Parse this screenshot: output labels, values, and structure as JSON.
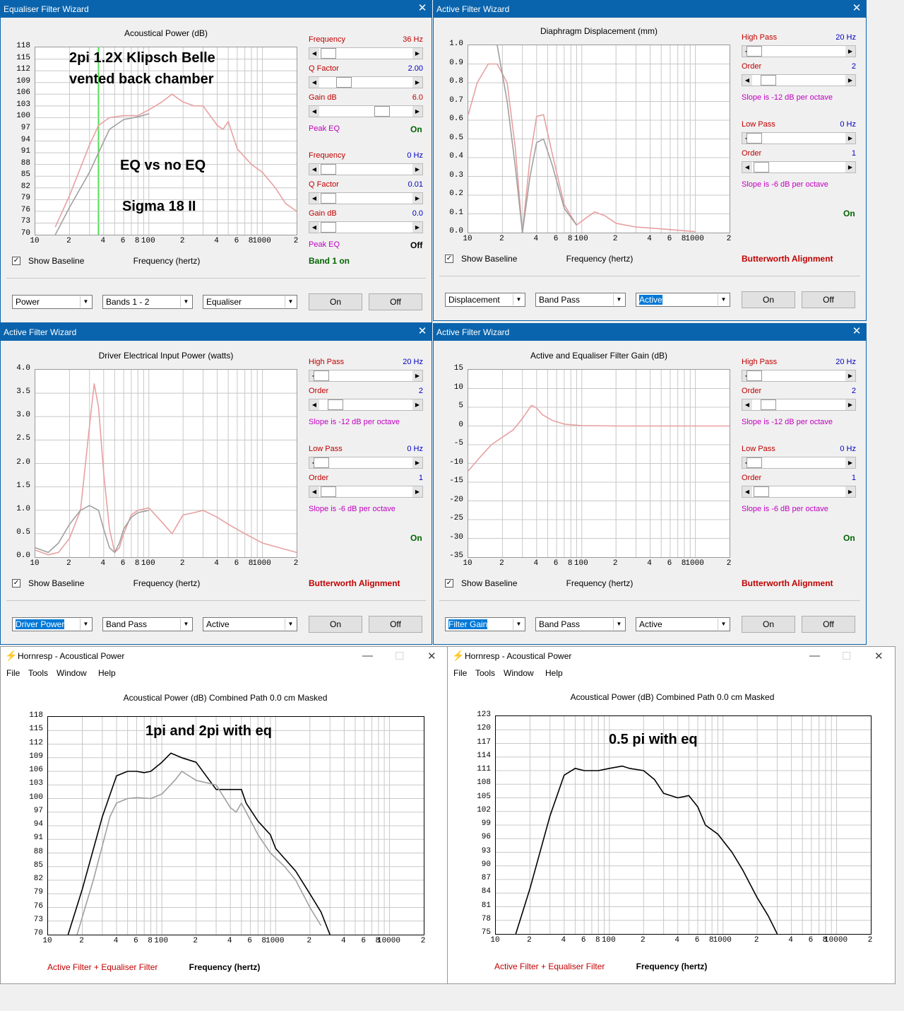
{
  "w1": {
    "title": "Equaliser Filter Wizard",
    "chart_title": "Acoustical Power (dB)",
    "yticks": [
      "118",
      "115",
      "112",
      "109",
      "106",
      "103",
      "100",
      "97",
      "94",
      "91",
      "88",
      "85",
      "82",
      "79",
      "76",
      "73",
      "70"
    ],
    "xticks": [
      "10",
      "2",
      "4",
      "6",
      "8",
      "100",
      "2",
      "4",
      "6",
      "8",
      "1000",
      "2"
    ],
    "ann1": "2pi 1.2X Klipsch Belle",
    "ann2": "vented back chamber",
    "ann3": "EQ vs no EQ",
    "ann4": "Sigma 18 II",
    "controls": [
      {
        "label": "Frequency",
        "value": "36 Hz",
        "color": "#c00000"
      },
      {
        "label": "Q Factor",
        "value": "2.00",
        "color": "#0000c0"
      },
      {
        "label": "Gain  dB",
        "value": "6.0",
        "color": "#c00000"
      },
      {
        "label": "Frequency",
        "value": "0 Hz",
        "color": "#0000c0"
      },
      {
        "label": "Q Factor",
        "value": "0.01",
        "color": "#0000c0"
      },
      {
        "label": "Gain  dB",
        "value": "0.0",
        "color": "#0000c0"
      }
    ],
    "peak1": "Peak EQ",
    "peak1v": "On",
    "peak2": "Peak EQ",
    "peak2v": "Off",
    "band": "Band 1 on",
    "baseline": "Show Baseline",
    "xtitle": "Frequency (hertz)",
    "dd1": "Power",
    "dd2": "Bands 1 - 2",
    "dd3": "Equaliser",
    "on": "On",
    "off": "Off"
  },
  "w2": {
    "title": "Active Filter Wizard",
    "chart_title": "Diaphragm Displacement (mm)",
    "yticks": [
      "1.0",
      "0.9",
      "0.8",
      "0.7",
      "0.6",
      "0.5",
      "0.4",
      "0.3",
      "0.2",
      "0.1",
      "0.0"
    ],
    "xticks": [
      "10",
      "2",
      "4",
      "6",
      "8",
      "100",
      "2",
      "4",
      "6",
      "8",
      "1000",
      "2"
    ],
    "hp": "High Pass",
    "hpv": "20 Hz",
    "ord": "Order",
    "ordv": "2",
    "slope1": "Slope is -12 dB per octave",
    "lp": "Low Pass",
    "lpv": "0 Hz",
    "ord2": "Order",
    "ord2v": "1",
    "slope2": "Slope is -6 dB per octave",
    "status": "On",
    "align": "Butterworth Alignment",
    "baseline": "Show Baseline",
    "xtitle": "Frequency (hertz)",
    "dd1": "Displacement",
    "dd2": "Band Pass",
    "dd3": "Active",
    "on": "On",
    "off": "Off"
  },
  "w3": {
    "title": "Active Filter Wizard",
    "chart_title": "Driver Electrical Input Power (watts)",
    "yticks": [
      "4.0",
      "3.5",
      "3.0",
      "2.5",
      "2.0",
      "1.5",
      "1.0",
      "0.5",
      "0.0"
    ],
    "xticks": [
      "10",
      "2",
      "4",
      "6",
      "8",
      "100",
      "2",
      "4",
      "6",
      "8",
      "1000",
      "2"
    ],
    "hp": "High Pass",
    "hpv": "20 Hz",
    "ord": "Order",
    "ordv": "2",
    "slope1": "Slope is -12 dB per octave",
    "lp": "Low Pass",
    "lpv": "0 Hz",
    "ord2": "Order",
    "ord2v": "1",
    "slope2": "Slope is -6 dB per octave",
    "status": "On",
    "align": "Butterworth Alignment",
    "baseline": "Show Baseline",
    "xtitle": "Frequency (hertz)",
    "dd1": "Driver Power",
    "dd2": "Band Pass",
    "dd3": "Active",
    "on": "On",
    "off": "Off"
  },
  "w4": {
    "title": "Active Filter Wizard",
    "chart_title": "Active and Equaliser Filter Gain (dB)",
    "yticks": [
      "15",
      "10",
      "5",
      "0",
      "-5",
      "-10",
      "-15",
      "-20",
      "-25",
      "-30",
      "-35"
    ],
    "xticks": [
      "10",
      "2",
      "4",
      "6",
      "8",
      "100",
      "2",
      "4",
      "6",
      "8",
      "1000",
      "2"
    ],
    "hp": "High Pass",
    "hpv": "20 Hz",
    "ord": "Order",
    "ordv": "2",
    "slope1": "Slope is -12 dB per octave",
    "lp": "Low Pass",
    "lpv": "0 Hz",
    "ord2": "Order",
    "ord2v": "1",
    "slope2": "Slope is -6 dB per octave",
    "status": "On",
    "align": "Butterworth Alignment",
    "baseline": "Show Baseline",
    "xtitle": "Frequency (hertz)",
    "dd1": "Filter Gain",
    "dd2": "Band Pass",
    "dd3": "Active",
    "on": "On",
    "off": "Off"
  },
  "w5": {
    "title": "Hornresp - Acoustical Power",
    "menu": [
      "File",
      "Tools",
      "Window",
      "Help"
    ],
    "chart_title": "Acoustical Power (dB)   Combined   Path 0.0 cm   Masked",
    "yticks": [
      "118",
      "115",
      "112",
      "109",
      "106",
      "103",
      "100",
      "97",
      "94",
      "91",
      "88",
      "85",
      "82",
      "79",
      "76",
      "73",
      "70"
    ],
    "xticks": [
      "10",
      "2",
      "4",
      "6",
      "8",
      "100",
      "2",
      "4",
      "6",
      "8",
      "1000",
      "2",
      "4",
      "6",
      "8",
      "10000",
      "2"
    ],
    "ann": "1pi and 2pi with eq",
    "legend": "Active Filter + Equaliser Filter",
    "xtitle": "Frequency (hertz)"
  },
  "w6": {
    "title": "Hornresp - Acoustical Power",
    "menu": [
      "File",
      "Tools",
      "Window",
      "Help"
    ],
    "chart_title": "Acoustical Power (dB)   Combined   Path 0.0 cm   Masked",
    "yticks": [
      "123",
      "120",
      "117",
      "114",
      "111",
      "108",
      "105",
      "102",
      "99",
      "96",
      "93",
      "90",
      "87",
      "84",
      "81",
      "78",
      "75"
    ],
    "xticks": [
      "10",
      "2",
      "4",
      "6",
      "8",
      "100",
      "2",
      "4",
      "6",
      "8",
      "1000",
      "2",
      "4",
      "6",
      "8",
      "10000",
      "2"
    ],
    "ann": "0.5 pi with eq",
    "legend": "Active Filter + Equaliser Filter",
    "xtitle": "Frequency (hertz)"
  },
  "chart_data": [
    {
      "type": "line",
      "title": "Acoustical Power (dB)",
      "xlabel": "Frequency (hertz)",
      "xscale": "log",
      "xlim": [
        10,
        2000
      ],
      "ylim": [
        70,
        118
      ],
      "series": [
        {
          "name": "EQ",
          "color": "#e8a0a0",
          "x": [
            15,
            20,
            30,
            36,
            45,
            60,
            80,
            100,
            130,
            160,
            200,
            250,
            300,
            400,
            450,
            500,
            600,
            800,
            1000,
            1300,
            1600,
            2000
          ],
          "y": [
            72,
            80,
            93,
            98,
            100,
            100.5,
            100.5,
            102,
            104,
            106,
            104,
            103,
            103,
            98,
            97,
            99,
            92,
            88,
            86,
            82,
            78,
            76
          ]
        },
        {
          "name": "Baseline",
          "color": "#a0a0a0",
          "x": [
            15,
            20,
            30,
            36,
            45,
            60,
            80,
            100
          ],
          "y": [
            70,
            77,
            86,
            91,
            97,
            99.5,
            100.2,
            101
          ]
        }
      ]
    },
    {
      "type": "line",
      "title": "Diaphragm Displacement (mm)",
      "xlabel": "Frequency (hertz)",
      "xscale": "log",
      "xlim": [
        10,
        2000
      ],
      "ylim": [
        0,
        1
      ],
      "series": [
        {
          "name": "EQ",
          "color": "#e8a0a0",
          "x": [
            10,
            12,
            15,
            18,
            22,
            26,
            30,
            35,
            40,
            46,
            55,
            70,
            90,
            110,
            130,
            160,
            200,
            300,
            500,
            1000
          ],
          "y": [
            0.63,
            0.8,
            0.9,
            0.9,
            0.8,
            0.45,
            0.0,
            0.4,
            0.62,
            0.63,
            0.42,
            0.15,
            0.04,
            0.08,
            0.11,
            0.09,
            0.05,
            0.03,
            0.02,
            0.005
          ]
        },
        {
          "name": "Baseline",
          "color": "#a0a0a0",
          "x": [
            18,
            22,
            26,
            30,
            35,
            40,
            46,
            55,
            70,
            90
          ],
          "y": [
            1.0,
            0.7,
            0.35,
            0.0,
            0.3,
            0.48,
            0.5,
            0.36,
            0.13,
            0.04
          ]
        }
      ]
    },
    {
      "type": "line",
      "title": "Driver Electrical Input Power (watts)",
      "xlabel": "Frequency (hertz)",
      "xscale": "log",
      "xlim": [
        10,
        2000
      ],
      "ylim": [
        0,
        4
      ],
      "series": [
        {
          "name": "EQ",
          "color": "#e8a0a0",
          "x": [
            10,
            13,
            16,
            20,
            25,
            30,
            33,
            36,
            40,
            45,
            50,
            55,
            60,
            70,
            80,
            100,
            130,
            160,
            200,
            250,
            300,
            400,
            500,
            700,
            1000,
            2000
          ],
          "y": [
            0.15,
            0.05,
            0.1,
            0.4,
            1.0,
            2.8,
            3.7,
            3.2,
            1.8,
            0.6,
            0.1,
            0.2,
            0.5,
            0.9,
            1.0,
            1.05,
            0.75,
            0.5,
            0.9,
            0.95,
            1.0,
            0.85,
            0.7,
            0.5,
            0.3,
            0.1
          ]
        },
        {
          "name": "Baseline",
          "color": "#a0a0a0",
          "x": [
            10,
            13,
            16,
            20,
            25,
            30,
            36,
            40,
            45,
            50,
            55,
            60,
            70,
            80,
            100
          ],
          "y": [
            0.2,
            0.1,
            0.3,
            0.7,
            1.0,
            1.1,
            1.0,
            0.6,
            0.2,
            0.1,
            0.3,
            0.6,
            0.85,
            0.95,
            1.0
          ]
        }
      ]
    },
    {
      "type": "line",
      "title": "Active and Equaliser Filter Gain (dB)",
      "xlabel": "Frequency (hertz)",
      "xscale": "log",
      "xlim": [
        10,
        2000
      ],
      "ylim": [
        -35,
        15
      ],
      "series": [
        {
          "name": "Gain",
          "color": "#e8a0a0",
          "x": [
            10,
            13,
            16,
            20,
            25,
            30,
            36,
            40,
            45,
            55,
            70,
            100,
            200,
            2000
          ],
          "y": [
            -12,
            -8,
            -5,
            -3,
            -1,
            2,
            5.5,
            4.8,
            3,
            1.5,
            0.5,
            0.1,
            0,
            0
          ]
        }
      ]
    },
    {
      "type": "line",
      "title": "Acoustical Power (dB)   Combined   Path 0.0 cm   Masked",
      "xlabel": "Frequency (hertz)",
      "xscale": "log",
      "xlim": [
        10,
        20000
      ],
      "ylim": [
        70,
        118
      ],
      "series": [
        {
          "name": "1pi",
          "color": "#000000",
          "x": [
            15,
            20,
            30,
            40,
            50,
            60,
            70,
            80,
            100,
            120,
            150,
            200,
            300,
            400,
            500,
            550,
            700,
            900,
            1000,
            1500,
            2000,
            2500,
            3000
          ],
          "y": [
            70,
            80,
            96,
            105,
            106,
            106,
            105.7,
            106,
            108,
            110,
            109,
            108,
            102,
            102,
            102,
            99,
            95,
            92,
            89,
            84,
            79,
            75,
            70
          ]
        },
        {
          "name": "2pi",
          "color": "#a0a0a0",
          "x": [
            18,
            25,
            35,
            40,
            50,
            60,
            80,
            100,
            130,
            150,
            200,
            300,
            400,
            450,
            500,
            700,
            900,
            1200,
            1500,
            2000,
            2500
          ],
          "y": [
            70,
            82,
            96,
            99,
            100,
            100.2,
            100,
            101,
            104,
            106,
            104,
            103,
            98,
            97,
            99,
            92,
            88,
            85,
            82,
            76,
            72
          ]
        }
      ]
    },
    {
      "type": "line",
      "title": "Acoustical Power (dB)   Combined   Path 0.0 cm   Masked",
      "xlabel": "Frequency (hertz)",
      "xscale": "log",
      "xlim": [
        10,
        20000
      ],
      "ylim": [
        75,
        123
      ],
      "series": [
        {
          "name": "0.5pi",
          "color": "#000000",
          "x": [
            15,
            20,
            30,
            40,
            50,
            60,
            70,
            80,
            100,
            130,
            150,
            200,
            250,
            300,
            400,
            500,
            600,
            700,
            900,
            1200,
            1500,
            2000,
            2500,
            3000
          ],
          "y": [
            75,
            85,
            101,
            110,
            111.5,
            111,
            111,
            111,
            111.5,
            112,
            111.5,
            111,
            109,
            106,
            105,
            105.5,
            103,
            99,
            97,
            93,
            89,
            83,
            79,
            75
          ]
        }
      ]
    }
  ]
}
